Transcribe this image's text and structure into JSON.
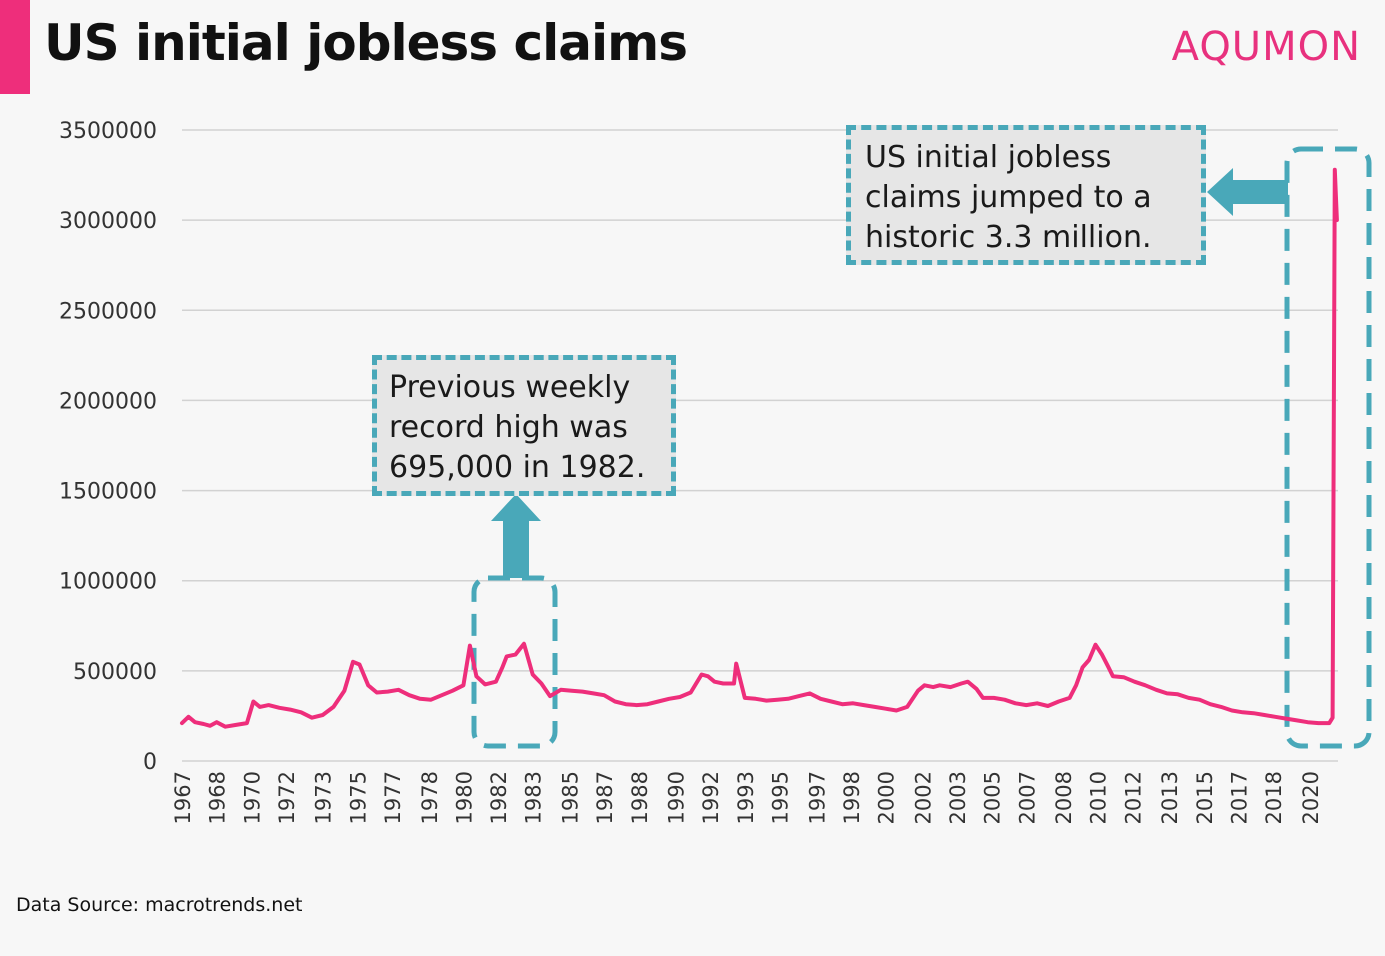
{
  "header": {
    "title": "US initial jobless claims",
    "brand": "AQUMON"
  },
  "footer": {
    "source": "Data Source:  macrotrends.net"
  },
  "annotations": {
    "record_1982": [
      "Previous weekly",
      "record high was",
      "695,000 in 1982."
    ],
    "record_2020": [
      "US initial jobless",
      "claims jumped to a",
      "historic 3.3 million."
    ]
  },
  "colors": {
    "line": "#ee2e7b",
    "brand": "#e8317e",
    "accent": "#ee2e7b",
    "annotation": "#49a8b9",
    "grid": "#d2d2d2",
    "axis_text": "#333333"
  },
  "chart_data": {
    "type": "line",
    "title": "US initial jobless claims",
    "xlabel": "",
    "ylabel": "",
    "ylim": [
      0,
      3500000
    ],
    "yticks": [
      0,
      500000,
      1000000,
      1500000,
      2000000,
      2500000,
      3000000,
      3500000
    ],
    "ytick_labels": [
      "0",
      "500000",
      "1000000",
      "1500000",
      "2000000",
      "2500000",
      "3000000",
      "3500000"
    ],
    "xlim": [
      1967.0,
      2020.4
    ],
    "xtick_labels": [
      "1967",
      "1968",
      "1970",
      "1972",
      "1973",
      "1975",
      "1977",
      "1978",
      "1980",
      "1982",
      "1983",
      "1985",
      "1987",
      "1988",
      "1990",
      "1992",
      "1993",
      "1995",
      "1997",
      "1998",
      "2000",
      "2002",
      "2003",
      "2005",
      "2007",
      "2008",
      "2010",
      "2012",
      "2013",
      "2015",
      "2017",
      "2018",
      "2020"
    ],
    "xtick_positions": [
      1967.0,
      1968.6,
      1970.2,
      1971.8,
      1973.5,
      1975.1,
      1976.7,
      1978.4,
      1980.0,
      1981.6,
      1983.2,
      1984.9,
      1986.5,
      1988.1,
      1989.8,
      1991.4,
      1993.0,
      1994.6,
      1996.3,
      1997.9,
      1999.5,
      2001.2,
      2002.8,
      2004.4,
      2006.0,
      2007.7,
      2009.3,
      2010.9,
      2012.6,
      2014.2,
      2015.8,
      2017.4,
      2019.1
    ],
    "grid": true,
    "series": [
      {
        "x": [
          1967.0,
          1967.3,
          1967.6,
          1968.0,
          1968.3,
          1968.6,
          1969.0,
          1969.5,
          1970.0,
          1970.3,
          1970.6,
          1971.0,
          1971.5,
          1972.0,
          1972.5,
          1973.0,
          1973.5,
          1974.0,
          1974.5,
          1974.9,
          1975.2,
          1975.6,
          1976.0,
          1976.5,
          1977.0,
          1977.5,
          1978.0,
          1978.5,
          1979.0,
          1979.5,
          1980.0,
          1980.3,
          1980.6,
          1981.0,
          1981.5,
          1981.8,
          1982.0,
          1982.4,
          1982.8,
          1983.2,
          1983.6,
          1984.0,
          1984.5,
          1985.0,
          1985.5,
          1986.0,
          1986.5,
          1987.0,
          1987.5,
          1988.0,
          1988.5,
          1989.0,
          1989.5,
          1990.0,
          1990.5,
          1991.0,
          1991.3,
          1991.6,
          1992.0,
          1992.5,
          1992.6,
          1993.0,
          1993.5,
          1994.0,
          1994.5,
          1995.0,
          1995.5,
          1996.0,
          1996.5,
          1997.0,
          1997.5,
          1998.0,
          1998.5,
          1999.0,
          1999.5,
          2000.0,
          2000.5,
          2001.0,
          2001.3,
          2001.7,
          2002.0,
          2002.5,
          2003.0,
          2003.3,
          2003.7,
          2004.0,
          2004.5,
          2005.0,
          2005.5,
          2006.0,
          2006.5,
          2007.0,
          2007.5,
          2008.0,
          2008.3,
          2008.6,
          2008.9,
          2009.2,
          2009.5,
          2009.8,
          2010.0,
          2010.5,
          2011.0,
          2011.5,
          2012.0,
          2012.5,
          2013.0,
          2013.5,
          2014.0,
          2014.5,
          2015.0,
          2015.5,
          2016.0,
          2016.5,
          2017.0,
          2017.5,
          2018.0,
          2018.5,
          2019.0,
          2019.5,
          2020.0,
          2020.15,
          2020.25,
          2020.35
        ],
        "y": [
          210000,
          245000,
          215000,
          205000,
          195000,
          215000,
          190000,
          200000,
          210000,
          330000,
          300000,
          310000,
          295000,
          285000,
          270000,
          240000,
          255000,
          300000,
          390000,
          550000,
          535000,
          420000,
          380000,
          385000,
          395000,
          365000,
          345000,
          340000,
          365000,
          390000,
          420000,
          640000,
          470000,
          425000,
          440000,
          520000,
          580000,
          590000,
          650000,
          480000,
          430000,
          360000,
          395000,
          390000,
          385000,
          375000,
          365000,
          330000,
          315000,
          310000,
          315000,
          330000,
          345000,
          355000,
          380000,
          480000,
          470000,
          440000,
          430000,
          430000,
          540000,
          350000,
          345000,
          335000,
          340000,
          345000,
          360000,
          375000,
          345000,
          330000,
          315000,
          320000,
          310000,
          300000,
          290000,
          280000,
          300000,
          390000,
          420000,
          410000,
          420000,
          410000,
          430000,
          440000,
          400000,
          350000,
          350000,
          340000,
          320000,
          310000,
          320000,
          305000,
          330000,
          350000,
          420000,
          520000,
          560000,
          645000,
          590000,
          520000,
          470000,
          465000,
          440000,
          420000,
          395000,
          375000,
          370000,
          350000,
          340000,
          315000,
          300000,
          280000,
          270000,
          265000,
          255000,
          245000,
          235000,
          225000,
          215000,
          210000,
          210000,
          240000,
          3280000,
          3000000
        ]
      }
    ]
  }
}
